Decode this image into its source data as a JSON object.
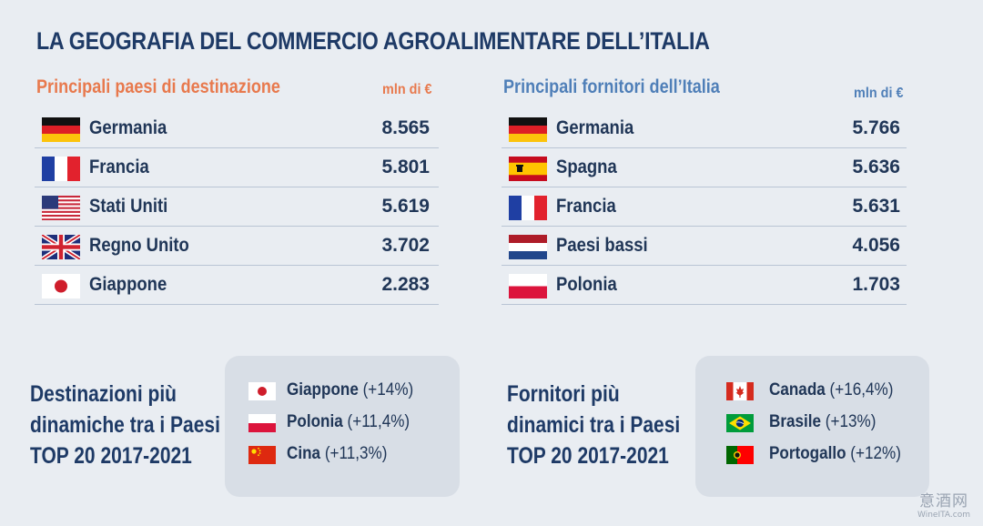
{
  "title": "LA GEOGRAFIA DEL COMMERCIO AGROALIMENTARE DELL’ITALIA",
  "destinations": {
    "subtitle": "Principali paesi di destinazione",
    "unit": "mln di €",
    "rows": [
      {
        "country": "Germania",
        "value": "8.565",
        "flag": "germany"
      },
      {
        "country": "Francia",
        "value": "5.801",
        "flag": "france"
      },
      {
        "country": "Stati Uniti",
        "value": "5.619",
        "flag": "usa"
      },
      {
        "country": "Regno Unito",
        "value": "3.702",
        "flag": "uk"
      },
      {
        "country": "Giappone",
        "value": "2.283",
        "flag": "japan"
      }
    ]
  },
  "suppliers": {
    "subtitle": "Principali fornitori dell’Italia",
    "unit": "mln di €",
    "rows": [
      {
        "country": "Germania",
        "value": "5.766",
        "flag": "germany"
      },
      {
        "country": "Spagna",
        "value": "5.636",
        "flag": "spain"
      },
      {
        "country": "Francia",
        "value": "5.631",
        "flag": "france"
      },
      {
        "country": "Paesi bassi",
        "value": "4.056",
        "flag": "netherlands"
      },
      {
        "country": "Polonia",
        "value": "1.703",
        "flag": "poland"
      }
    ]
  },
  "dynamic_destinations": {
    "lines": [
      "Destinazioni più",
      "dinamiche tra i Paesi",
      "TOP 20 2017-2021"
    ],
    "items": [
      {
        "country": "Giappone",
        "growth": "(+14%)",
        "flag": "japan"
      },
      {
        "country": "Polonia",
        "growth": "(+11,4%)",
        "flag": "poland"
      },
      {
        "country": "Cina",
        "growth": "(+11,3%)",
        "flag": "china"
      }
    ]
  },
  "dynamic_suppliers": {
    "lines": [
      "Fornitori più",
      "dinamici tra i Paesi",
      "TOP 20 2017-2021"
    ],
    "items": [
      {
        "country": "Canada",
        "growth": "(+16,4%)",
        "flag": "canada"
      },
      {
        "country": "Brasile",
        "growth": "(+13%)",
        "flag": "brazil"
      },
      {
        "country": "Portogallo",
        "growth": "(+12%)",
        "flag": "portugal"
      }
    ]
  },
  "watermark": {
    "main": "意酒网",
    "sub": "WineITA.com"
  },
  "colors": {
    "accent_orange": "#e8794d",
    "accent_blue": "#4f7fb8",
    "navy": "#1e3a66"
  }
}
